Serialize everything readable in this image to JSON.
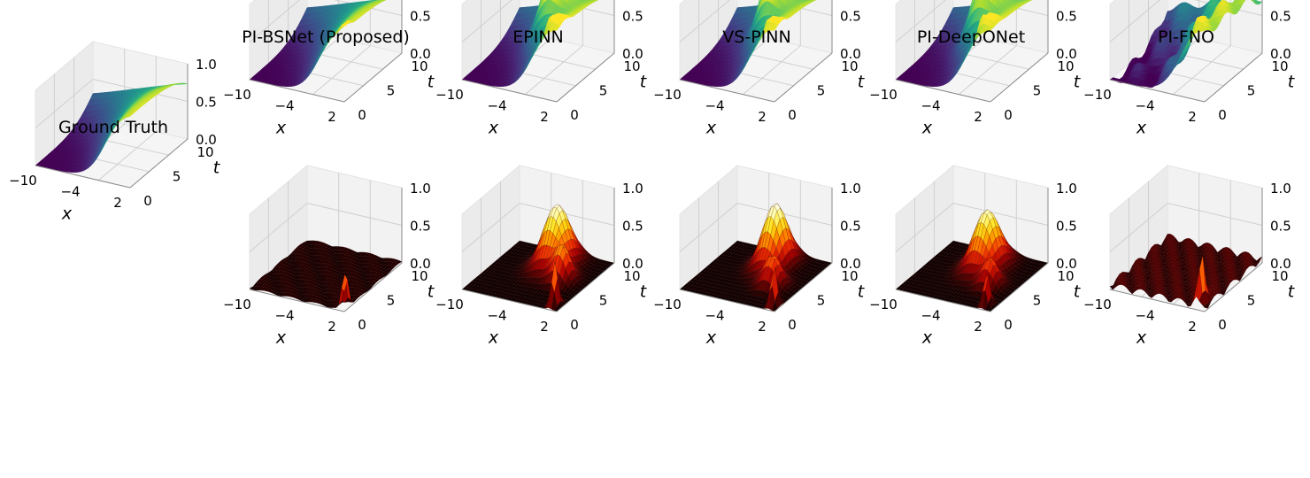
{
  "chart_data": {
    "type": "surface3d",
    "axis_labels": {
      "x": "x",
      "t": "t"
    },
    "x_ticks": [
      "−10",
      "−4",
      "2"
    ],
    "t_ticks": [
      "0",
      "5",
      "10"
    ],
    "z_ticks": [
      "0.0",
      "0.5",
      "1.0"
    ],
    "xlim": [
      -10,
      2
    ],
    "tlim": [
      0,
      10
    ],
    "zlim": [
      0,
      1
    ],
    "colormaps": {
      "solution": "viridis",
      "error": "hot"
    },
    "panels": [
      {
        "id": "gt",
        "title": "Ground Truth",
        "kind": "solution",
        "fn": "ideal"
      },
      {
        "id": "bsnet",
        "title": "PI-BSNet (Proposed)",
        "kind": "solution",
        "fn": "bsnet"
      },
      {
        "id": "epinn",
        "title": "EPINN",
        "kind": "solution",
        "fn": "epinn"
      },
      {
        "id": "vspinn",
        "title": "VS-PINN",
        "kind": "solution",
        "fn": "vspinn"
      },
      {
        "id": "deeponet",
        "title": "PI-DeepONet",
        "kind": "solution",
        "fn": "deeponet"
      },
      {
        "id": "fno",
        "title": "PI-FNO",
        "kind": "solution",
        "fn": "fno"
      },
      {
        "id": "bsnet-err",
        "title": "",
        "kind": "error",
        "fn": "bsnet"
      },
      {
        "id": "epinn-err",
        "title": "",
        "kind": "error",
        "fn": "epinn"
      },
      {
        "id": "vspinn-err",
        "title": "",
        "kind": "error",
        "fn": "vspinn"
      },
      {
        "id": "deeponet-err",
        "title": "",
        "kind": "error",
        "fn": "deeponet"
      },
      {
        "id": "fno-err",
        "title": "",
        "kind": "error",
        "fn": "fno"
      }
    ]
  }
}
